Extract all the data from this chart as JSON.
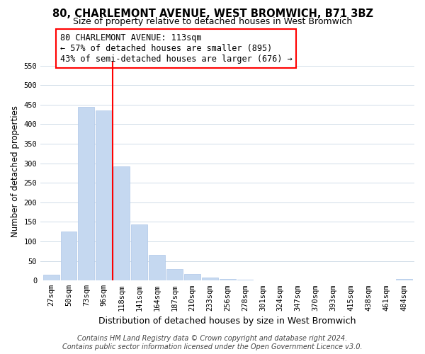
{
  "title": "80, CHARLEMONT AVENUE, WEST BROMWICH, B71 3BZ",
  "subtitle": "Size of property relative to detached houses in West Bromwich",
  "xlabel": "Distribution of detached houses by size in West Bromwich",
  "ylabel": "Number of detached properties",
  "bin_labels": [
    "27sqm",
    "50sqm",
    "73sqm",
    "96sqm",
    "118sqm",
    "141sqm",
    "164sqm",
    "187sqm",
    "210sqm",
    "233sqm",
    "256sqm",
    "278sqm",
    "301sqm",
    "324sqm",
    "347sqm",
    "370sqm",
    "393sqm",
    "415sqm",
    "438sqm",
    "461sqm",
    "484sqm"
  ],
  "bar_values": [
    15,
    125,
    445,
    435,
    293,
    143,
    65,
    29,
    16,
    8,
    4,
    2,
    1,
    1,
    1,
    0,
    0,
    0,
    0,
    0,
    5
  ],
  "bar_color": "#c5d8f0",
  "bar_edge_color": "#aec6e8",
  "grid_color": "#d0dce8",
  "reference_line_x": 3.5,
  "reference_line_color": "red",
  "annotation_text": "80 CHARLEMONT AVENUE: 113sqm\n← 57% of detached houses are smaller (895)\n43% of semi-detached houses are larger (676) →",
  "annotation_box_color": "white",
  "annotation_box_edge_color": "red",
  "ylim": [
    0,
    560
  ],
  "yticks": [
    0,
    50,
    100,
    150,
    200,
    250,
    300,
    350,
    400,
    450,
    500,
    550
  ],
  "footer_line1": "Contains HM Land Registry data © Crown copyright and database right 2024.",
  "footer_line2": "Contains public sector information licensed under the Open Government Licence v3.0.",
  "title_fontsize": 10.5,
  "subtitle_fontsize": 9,
  "xlabel_fontsize": 9,
  "ylabel_fontsize": 8.5,
  "tick_fontsize": 7.5,
  "annotation_fontsize": 8.5,
  "footer_fontsize": 7
}
